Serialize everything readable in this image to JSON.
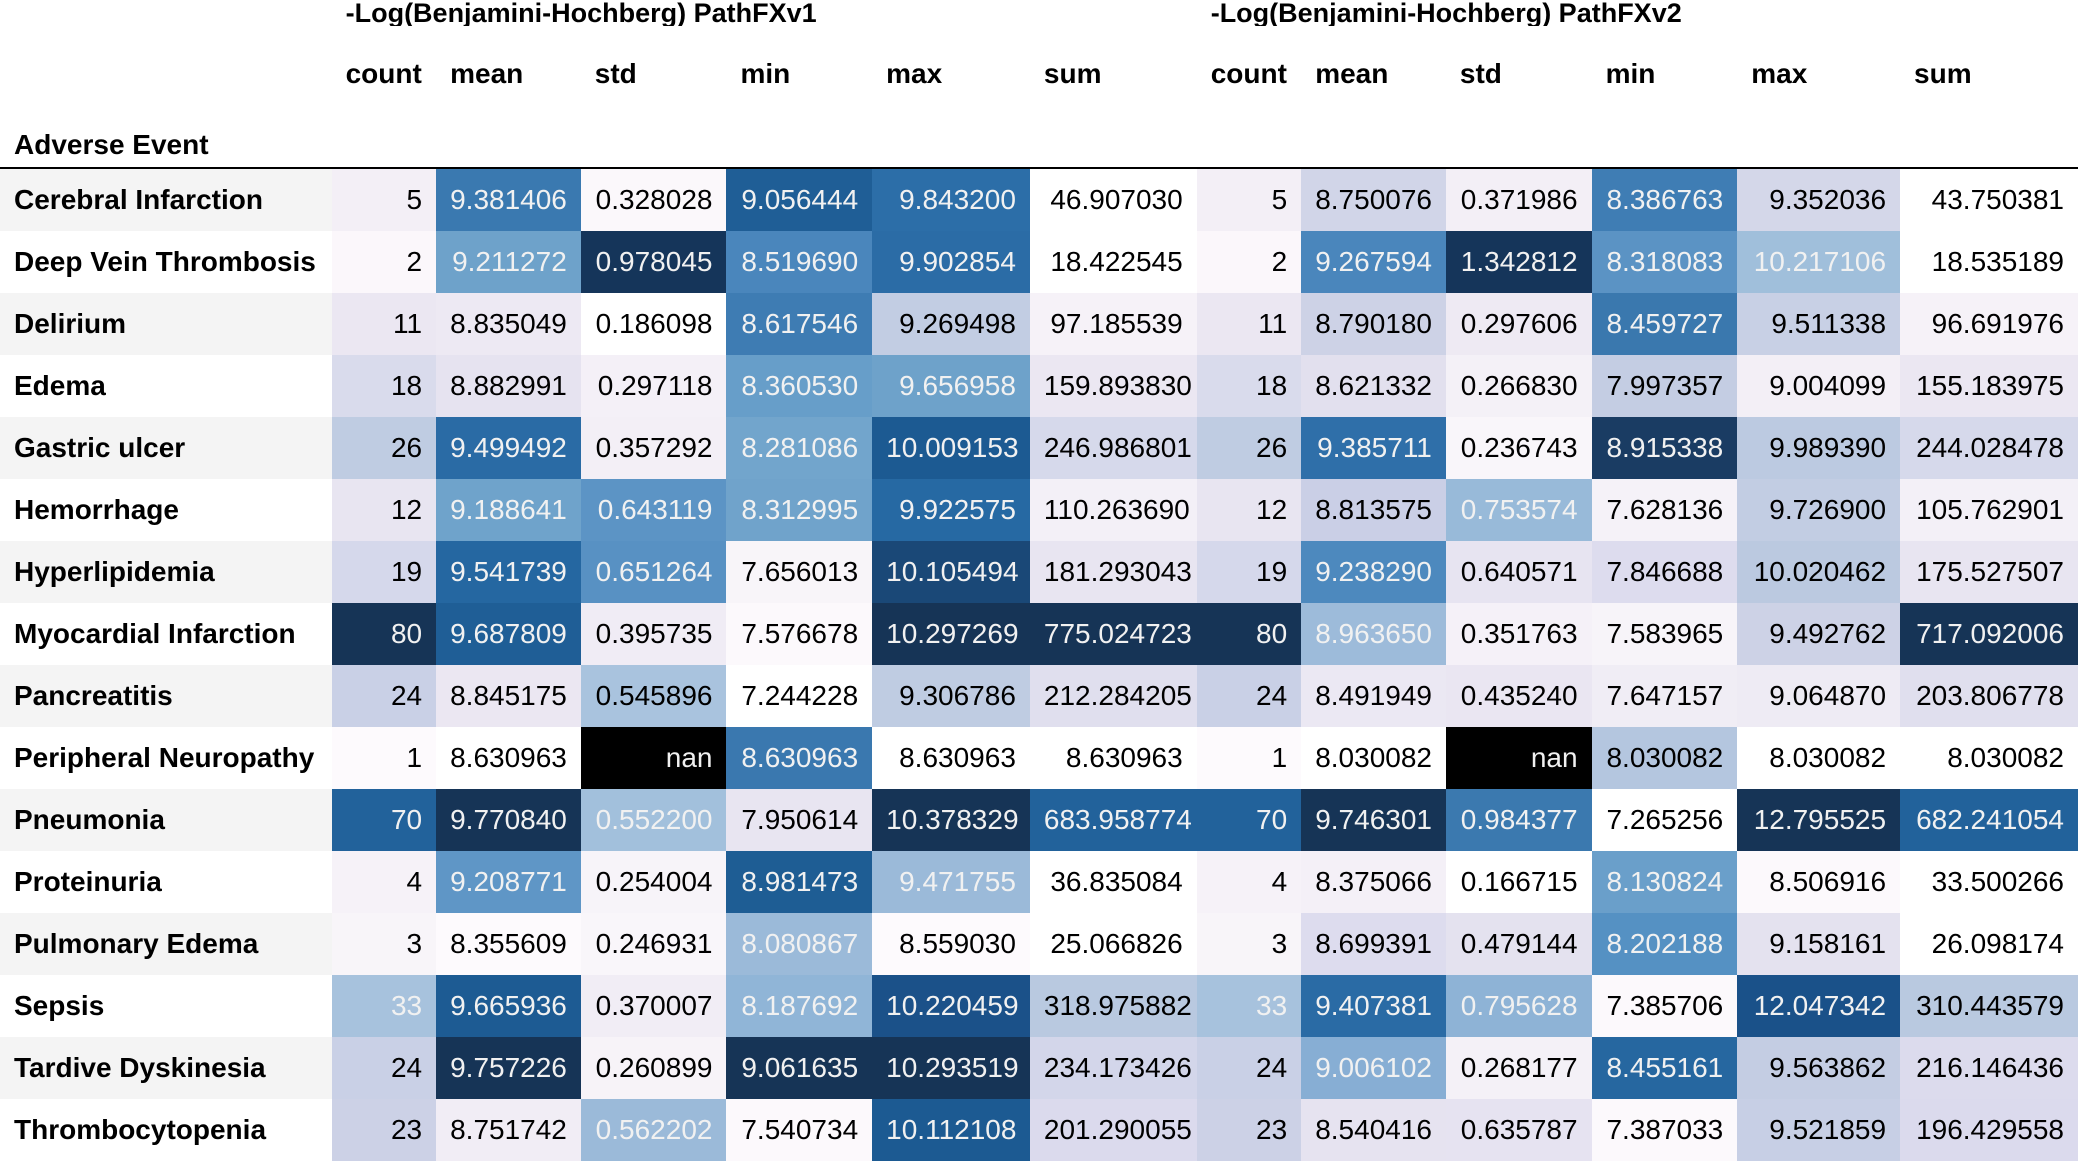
{
  "group_headers": [
    "-Log(Benjamini-Hochberg) PathFXv1",
    "-Log(Benjamini-Hochberg) PathFXv2"
  ],
  "stat_headers": [
    "count",
    "mean",
    "std",
    "min",
    "max",
    "sum"
  ],
  "index_header": "Adverse Event",
  "rows": [
    {
      "event": "Cerebral Infarction",
      "v1": [
        "5",
        "9.381406",
        "0.328028",
        "9.056444",
        "9.843200",
        "46.907030"
      ],
      "v2": [
        "5",
        "8.750076",
        "0.371986",
        "8.386763",
        "9.352036",
        "43.750381"
      ],
      "v1_bg": [
        "#f3eff6",
        "#3a79b0",
        "#fbf8fb",
        "#1f5e96",
        "#2c6ea8",
        "#ffffff"
      ],
      "v2_bg": [
        "#f3eff6",
        "#d1d5e8",
        "#f3eff6",
        "#3f7db4",
        "#d4d7e9",
        "#ffffff"
      ]
    },
    {
      "event": "Deep Vein Thrombosis",
      "v1": [
        "2",
        "9.211272",
        "0.978045",
        "8.519690",
        "9.902854",
        "18.422545"
      ],
      "v2": [
        "2",
        "9.267594",
        "1.342812",
        "8.318083",
        "10.217106",
        "18.535189"
      ],
      "v1_bg": [
        "#fbf7fb",
        "#6ea2ca",
        "#15355a",
        "#4a86bc",
        "#2b6ca6",
        "#ffffff"
      ],
      "v2_bg": [
        "#fbf7fb",
        "#4a86bc",
        "#15355a",
        "#5b93c4",
        "#a0bfdb",
        "#ffffff"
      ]
    },
    {
      "event": "Delirium",
      "v1": [
        "11",
        "8.835049",
        "0.186098",
        "8.617546",
        "9.269498",
        "97.185539"
      ],
      "v2": [
        "11",
        "8.790180",
        "0.297606",
        "8.459727",
        "9.511338",
        "96.691976"
      ],
      "v1_bg": [
        "#ebe7f2",
        "#ede9f3",
        "#ffffff",
        "#3e7cb3",
        "#c2cde3",
        "#f6f2f8"
      ],
      "v2_bg": [
        "#ebe7f2",
        "#cdd2e6",
        "#eeeaf3",
        "#3a78ae",
        "#c8d0e5",
        "#f6f2f8"
      ]
    },
    {
      "event": "Edema",
      "v1": [
        "18",
        "8.882991",
        "0.297118",
        "8.360530",
        "9.656958",
        "159.893830"
      ],
      "v2": [
        "18",
        "8.621332",
        "0.266830",
        "7.997357",
        "9.004099",
        "155.183975"
      ],
      "v1_bg": [
        "#d9dbec",
        "#e6e3f0",
        "#f4f0f7",
        "#679ec9",
        "#6ea2ca",
        "#ebe7f2"
      ],
      "v2_bg": [
        "#d9dbec",
        "#e2e0ee",
        "#f4f1f7",
        "#c4cde3",
        "#f3eff6",
        "#ebe7f2"
      ]
    },
    {
      "event": "Gastric ulcer",
      "v1": [
        "26",
        "9.499492",
        "0.357292",
        "8.281086",
        "10.009153",
        "246.986801"
      ],
      "v2": [
        "26",
        "9.385711",
        "0.236743",
        "8.915338",
        "9.989390",
        "244.028478"
      ],
      "v1_bg": [
        "#bfcce2",
        "#2a6ba5",
        "#f3eff6",
        "#72a5cc",
        "#1c5a92",
        "#d6d9eb"
      ],
      "v2_bg": [
        "#bfcce2",
        "#2f6fa9",
        "#f9f6fa",
        "#1a3c63",
        "#bccae1",
        "#d6d9eb"
      ]
    },
    {
      "event": "Hemorrhage",
      "v1": [
        "12",
        "9.188641",
        "0.643119",
        "8.312995",
        "9.922575",
        "110.263690"
      ],
      "v2": [
        "12",
        "8.813575",
        "0.753574",
        "7.628136",
        "9.726900",
        "105.762901"
      ],
      "v1_bg": [
        "#e8e5f1",
        "#6fa3cb",
        "#5c94c5",
        "#70a3cb",
        "#2669a3",
        "#f3f0f7"
      ],
      "v2_bg": [
        "#e8e5f1",
        "#cacfe6",
        "#98bad9",
        "#f5f2f8",
        "#c2cde3",
        "#f3f0f7"
      ]
    },
    {
      "event": "Hyperlipidemia",
      "v1": [
        "19",
        "9.541739",
        "0.651264",
        "7.656013",
        "10.105494",
        "181.293043"
      ],
      "v2": [
        "19",
        "9.238290",
        "0.640571",
        "7.846688",
        "10.020462",
        "175.527507"
      ],
      "v1_bg": [
        "#d5d8eb",
        "#2567a1",
        "#5891c3",
        "#f8f5f9",
        "#1a4877",
        "#e8e5f1"
      ],
      "v2_bg": [
        "#d5d8eb",
        "#4d89be",
        "#e7e4f1",
        "#dddcee",
        "#bbc9e0",
        "#e8e5f1"
      ]
    },
    {
      "event": "Myocardial Infarction",
      "v1": [
        "80",
        "9.687809",
        "0.395735",
        "7.576678",
        "10.297269",
        "775.024723"
      ],
      "v2": [
        "80",
        "8.963650",
        "0.351763",
        "7.583965",
        "9.492762",
        "717.092006"
      ],
      "v1_bg": [
        "#163456",
        "#1f5e96",
        "#f0ecf5",
        "#fcf9fc",
        "#163456",
        "#163456"
      ],
      "v2_bg": [
        "#163456",
        "#9dbbda",
        "#f5f1f8",
        "#f7f4f9",
        "#cdd2e6",
        "#163456"
      ]
    },
    {
      "event": "Pancreatitis",
      "v1": [
        "24",
        "8.845175",
        "0.545896",
        "7.244228",
        "9.306786",
        "212.284205"
      ],
      "v2": [
        "24",
        "8.491949",
        "0.435240",
        "7.647157",
        "9.064870",
        "203.806778"
      ],
      "v1_bg": [
        "#c9d0e6",
        "#ebe7f2",
        "#a9c3de",
        "#ffffff",
        "#bfcce2",
        "#e0dfee"
      ],
      "v2_bg": [
        "#c9d0e6",
        "#ebe8f3",
        "#eae6f2",
        "#f0edf5",
        "#eeebf4",
        "#e0dfee"
      ]
    },
    {
      "event": "Peripheral Neuropathy",
      "v1": [
        "1",
        "8.630963",
        "nan",
        "8.630963",
        "8.630963",
        "8.630963"
      ],
      "v2": [
        "1",
        "8.030082",
        "nan",
        "8.030082",
        "8.030082",
        "8.030082"
      ],
      "v1_bg": [
        "#fdfafd",
        "#ffffff",
        "#000000",
        "#3a78af",
        "#ffffff",
        "#ffffff"
      ],
      "v2_bg": [
        "#fdfafd",
        "#ffffff",
        "#000000",
        "#b4c6df",
        "#ffffff",
        "#ffffff"
      ]
    },
    {
      "event": "Pneumonia",
      "v1": [
        "70",
        "9.770840",
        "0.552200",
        "7.950614",
        "10.378329",
        "683.958774"
      ],
      "v2": [
        "70",
        "9.746301",
        "0.984377",
        "7.265256",
        "12.795525",
        "682.241054"
      ],
      "v1_bg": [
        "#22629b",
        "#163456",
        "#a2c0dc",
        "#e8e5f1",
        "#163456",
        "#22629b"
      ],
      "v2_bg": [
        "#22629b",
        "#163456",
        "#3b79af",
        "#ffffff",
        "#163456",
        "#22629b"
      ]
    },
    {
      "event": "Proteinuria",
      "v1": [
        "4",
        "9.208771",
        "0.254004",
        "8.981473",
        "9.471755",
        "36.835084"
      ],
      "v2": [
        "4",
        "8.375066",
        "0.166715",
        "8.130824",
        "8.506916",
        "33.500266"
      ],
      "v1_bg": [
        "#f6f2f8",
        "#5f96c6",
        "#f7f4f9",
        "#1e5d94",
        "#9bbad9",
        "#ffffff"
      ],
      "v2_bg": [
        "#f6f2f8",
        "#f4f0f7",
        "#ffffff",
        "#6a9fca",
        "#fcf9fc",
        "#ffffff"
      ]
    },
    {
      "event": "Pulmonary Edema",
      "v1": [
        "3",
        "8.355609",
        "0.246931",
        "8.080867",
        "8.559030",
        "25.066826"
      ],
      "v2": [
        "3",
        "8.699391",
        "0.479144",
        "8.202188",
        "9.158161",
        "26.098174"
      ],
      "v1_bg": [
        "#f8f5f9",
        "#fdfafd",
        "#f9f6fa",
        "#9bbad9",
        "#fdfafd",
        "#ffffff"
      ],
      "v2_bg": [
        "#f8f5f9",
        "#dddcee",
        "#e4e2ef",
        "#5591c3",
        "#e4e2ef",
        "#ffffff"
      ]
    },
    {
      "event": "Sepsis",
      "v1": [
        "33",
        "9.665936",
        "0.370007",
        "8.187692",
        "10.220459",
        "318.975882"
      ],
      "v2": [
        "33",
        "9.407381",
        "0.795628",
        "7.385706",
        "12.047342",
        "310.443579"
      ],
      "v1_bg": [
        "#a7c2dd",
        "#1d5b93",
        "#f1edf5",
        "#90b5d7",
        "#1b5189",
        "#b9c9e0"
      ],
      "v2_bg": [
        "#a7c2dd",
        "#2a6ba5",
        "#8eb3d6",
        "#fcf9fc",
        "#1a5189",
        "#b9c9e0"
      ]
    },
    {
      "event": "Tardive Dyskinesia",
      "v1": [
        "24",
        "9.757226",
        "0.260899",
        "9.061635",
        "10.293519",
        "234.173426"
      ],
      "v2": [
        "24",
        "9.006102",
        "0.268177",
        "8.455161",
        "9.563862",
        "216.146436"
      ],
      "v1_bg": [
        "#c9d0e6",
        "#163456",
        "#f7f3f8",
        "#163456",
        "#163456",
        "#d3d6ea"
      ],
      "v2_bg": [
        "#c9d0e6",
        "#87aed4",
        "#f4f1f7",
        "#2667a0",
        "#c4cde3",
        "#dcdbed"
      ]
    },
    {
      "event": "Thrombocytopenia",
      "v1": [
        "23",
        "8.751742",
        "0.562202",
        "7.540734",
        "10.112108",
        "201.290055"
      ],
      "v2": [
        "23",
        "8.540416",
        "0.635787",
        "7.387033",
        "9.521859",
        "196.429558"
      ],
      "v1_bg": [
        "#ccd1e6",
        "#f1edf5",
        "#9bbad9",
        "#fcf9fc",
        "#1c5a92",
        "#dbdaed"
      ],
      "v2_bg": [
        "#ccd1e6",
        "#e6e3f0",
        "#e6e3f1",
        "#fcf9fc",
        "#c7cfe5",
        "#dbdaed"
      ]
    }
  ]
}
